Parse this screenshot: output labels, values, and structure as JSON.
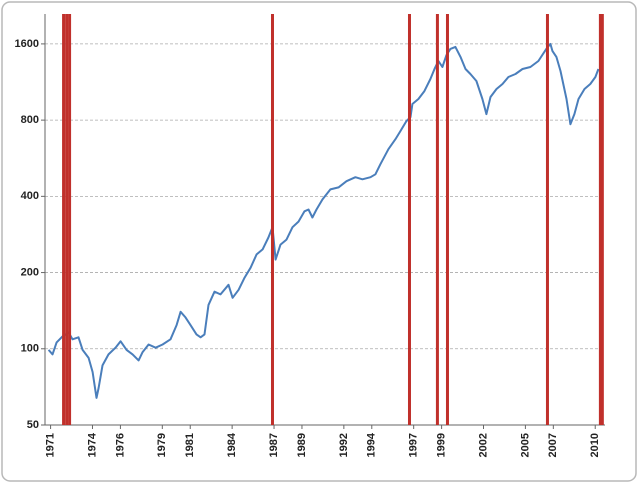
{
  "chart_data": {
    "type": "line",
    "log_y": true,
    "grid": true,
    "x": [
      1970.86,
      1971.14,
      1971.43,
      1971.86,
      1972.29,
      1972.57,
      1973.0,
      1973.29,
      1973.72,
      1974.01,
      1974.29,
      1974.44,
      1974.72,
      1975.15,
      1975.65,
      1976.01,
      1976.44,
      1976.87,
      1977.3,
      1977.59,
      1978.02,
      1978.52,
      1979.02,
      1979.59,
      1980.02,
      1980.31,
      1980.66,
      1981.02,
      1981.45,
      1981.74,
      1982.02,
      1982.31,
      1982.74,
      1983.17,
      1983.74,
      1984.03,
      1984.46,
      1984.89,
      1985.32,
      1985.75,
      1986.18,
      1986.6,
      1986.89,
      1987.11,
      1987.46,
      1987.89,
      1988.32,
      1988.75,
      1989.18,
      1989.47,
      1989.75,
      1990.04,
      1990.47,
      1991.04,
      1991.62,
      1992.19,
      1992.83,
      1993.33,
      1993.91,
      1994.26,
      1994.62,
      1995.19,
      1995.7,
      1996.05,
      1996.48,
      1996.77,
      1996.91,
      1997.34,
      1997.77,
      1998.2,
      1998.49,
      1998.77,
      1999.06,
      1999.35,
      1999.63,
      1999.99,
      2000.35,
      2000.71,
      2001.06,
      2001.49,
      2001.92,
      2002.21,
      2002.5,
      2002.93,
      2003.36,
      2003.78,
      2004.29,
      2004.79,
      2005.36,
      2005.93,
      2006.5,
      2006.79,
      2006.93,
      2007.22,
      2007.51,
      2007.94,
      2008.22,
      2008.51,
      2008.8,
      2009.23,
      2009.65,
      2010.01,
      2010.23
    ],
    "series": [
      {
        "color": "#4a7ebb",
        "values": [
          99,
          95,
          106,
          112,
          116,
          109,
          111,
          99,
          92,
          81,
          64,
          70,
          86,
          95,
          101,
          107,
          99,
          95,
          90,
          97,
          104,
          101,
          104,
          109,
          124,
          140,
          133,
          124,
          114,
          111,
          114,
          149,
          168,
          164,
          179,
          159,
          171,
          191,
          209,
          236,
          247,
          275,
          302,
          225,
          258,
          270,
          302,
          318,
          349,
          355,
          330,
          355,
          389,
          426,
          434,
          459,
          476,
          467,
          476,
          489,
          536,
          614,
          673,
          724,
          793,
          822,
          926,
          969,
          1042,
          1163,
          1274,
          1370,
          1297,
          1447,
          1529,
          1557,
          1421,
          1274,
          1217,
          1142,
          969,
          845,
          987,
          1062,
          1111,
          1184,
          1217,
          1274,
          1297,
          1370,
          1529,
          1600,
          1501,
          1421,
          1251,
          969,
          771,
          845,
          969,
          1062,
          1111,
          1184,
          1274
        ]
      }
    ],
    "markers": {
      "color": "#c0302b",
      "x": [
        1971.93,
        1972.15,
        1972.36,
        1986.89,
        1996.7,
        1998.7,
        1999.42,
        2006.58,
        2010.37,
        2010.51
      ]
    },
    "xlim": [
      1970.6,
      2010.7
    ],
    "xticks": [
      1971,
      1974,
      1976,
      1979,
      1981,
      1984,
      1987,
      1989,
      1992,
      1994,
      1997,
      1999,
      2002,
      2005,
      2007,
      2010
    ],
    "ylim": [
      50,
      2100
    ],
    "yticks": [
      50,
      100,
      200,
      400,
      800,
      1600
    ]
  }
}
